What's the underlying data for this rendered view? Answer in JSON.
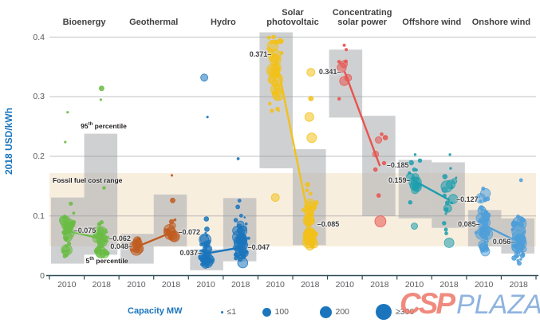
{
  "colors": {
    "accent_blue": "#1B75BC",
    "text_dark": "#414042",
    "text_mid": "#58595b",
    "grid": "#8d8f92",
    "box_fill": "rgba(175,177,180,0.6)",
    "band_fill": "#F8EEDE",
    "axis_line": "#2E4A57"
  },
  "percentiles": {
    "p95_num": "95",
    "p95_sup": "th",
    "p95_word": " percentile",
    "p5_num": "5",
    "p5_sup": "th",
    "p5_word": " percentile"
  },
  "legend": {
    "title": "Capacity MW",
    "items": [
      {
        "label": "≤1",
        "r": 1.5
      },
      {
        "label": "100",
        "r": 5.5
      },
      {
        "label": "200",
        "r": 7.5
      },
      {
        "label": "≥300",
        "r": 10
      }
    ]
  },
  "watermark": {
    "csp": "CSP",
    "plaza": "PLAZA"
  },
  "chart_data": {
    "type": "scatter",
    "title": "",
    "ylabel": "2018 USD/kWh",
    "ylim": [
      0,
      0.42
    ],
    "yticks": [
      0.4,
      0.3,
      0.2,
      0.1,
      0
    ],
    "ytick_labels": [
      "0.4",
      "0.3",
      "0.2",
      "0.1",
      "0"
    ],
    "x_years": [
      "2010",
      "2018"
    ],
    "grid": true,
    "fossil_band": {
      "label": "Fossil fuel cost range",
      "min": 0.049,
      "max": 0.172
    },
    "groups": [
      {
        "label": "Bioenergy",
        "color": "#6ABC45",
        "years": [
          {
            "year": "2010",
            "avg": 0.075,
            "avg_text": "0.075",
            "side": "right",
            "box": [
              0.02,
              0.131
            ],
            "swarm": {
              "seed": 11,
              "n": 36,
              "min": 0.032,
              "max": 0.148,
              "center": 0.072,
              "maxr": 5.5
            },
            "outliers": [
              [
                0.224,
                1.2,
                -2
              ],
              [
                0.274,
                1.2,
                1
              ]
            ]
          },
          {
            "year": "2018",
            "avg": 0.062,
            "avg_text": "0.062",
            "side": "right",
            "box": [
              0.035,
              0.238
            ],
            "swarm": {
              "seed": 12,
              "n": 34,
              "min": 0.036,
              "max": 0.15,
              "center": 0.058,
              "maxr": 5.5
            },
            "outliers": [
              [
                0.314,
                3,
                0
              ],
              [
                0.295,
                1.2,
                -1
              ],
              [
                0.147,
                1.8,
                3
              ]
            ]
          }
        ]
      },
      {
        "label": "Geothermal",
        "color": "#C05C21",
        "years": [
          {
            "year": "2010",
            "avg": 0.048,
            "avg_text": "0.048",
            "side": "left",
            "box": [
              0.02,
              0.07
            ],
            "swarm": {
              "seed": 13,
              "n": 12,
              "min": 0.042,
              "max": 0.09,
              "center": 0.051,
              "maxr": 6
            },
            "outliers": []
          },
          {
            "year": "2018",
            "avg": 0.072,
            "avg_text": "0.072",
            "side": "right",
            "box": [
              0.049,
              0.136
            ],
            "swarm": {
              "seed": 14,
              "n": 14,
              "min": 0.054,
              "max": 0.102,
              "center": 0.072,
              "maxr": 6
            },
            "outliers": [
              [
                0.126,
                3,
                2
              ],
              [
                0.168,
                1.2,
                1
              ]
            ]
          }
        ]
      },
      {
        "label": "Hydro",
        "color": "#1B75BC",
        "years": [
          {
            "year": "2010",
            "avg": 0.037,
            "avg_text": "0.037",
            "side": "left",
            "box": [
              0.009,
              0.044
            ],
            "swarm": {
              "seed": 15,
              "n": 40,
              "min": 0.018,
              "max": 0.132,
              "center": 0.04,
              "maxr": 6
            },
            "outliers": [
              [
                0.332,
                4.5,
                -2
              ],
              [
                0.266,
                1.2,
                2
              ]
            ]
          },
          {
            "year": "2018",
            "avg": 0.047,
            "avg_text": "0.047",
            "side": "right",
            "box": [
              0.024,
              0.13
            ],
            "swarm": {
              "seed": 16,
              "n": 46,
              "min": 0.02,
              "max": 0.158,
              "center": 0.058,
              "maxr": 7
            },
            "outliers": [
              [
                0.196,
                1.5,
                -3
              ]
            ]
          }
        ]
      },
      {
        "label": "Solar photovoltaic",
        "color": "#F2C11A",
        "years": [
          {
            "year": "2010",
            "avg": 0.371,
            "avg_text": "0.371",
            "side": "left",
            "box": [
              0.18,
              0.408
            ],
            "swarm": {
              "seed": 17,
              "n": 42,
              "min": 0.188,
              "max": 0.402,
              "center": 0.35,
              "maxr": 7
            },
            "outliers": [
              [
                0.131,
                5,
                0
              ]
            ]
          },
          {
            "year": "2018",
            "avg": 0.085,
            "avg_text": "0.085",
            "side": "right",
            "box": [
              0.051,
              0.212
            ],
            "swarm": {
              "seed": 18,
              "n": 46,
              "min": 0.048,
              "max": 0.21,
              "center": 0.085,
              "maxr": 6.5
            },
            "outliers": [
              [
                0.341,
                5,
                1
              ],
              [
                0.297,
                3,
                1
              ],
              [
                0.266,
                5.5,
                -1
              ],
              [
                0.231,
                6,
                2
              ]
            ]
          }
        ]
      },
      {
        "label": "Concentrating solar power",
        "color": "#E8544F",
        "years": [
          {
            "year": "2010",
            "avg": 0.341,
            "avg_text": "0.341",
            "side": "left",
            "box": [
              0.265,
              0.379
            ],
            "swarm": {
              "seed": 19,
              "n": 9,
              "min": 0.262,
              "max": 0.388,
              "center": 0.34,
              "maxr": 4.5
            },
            "outliers": []
          },
          {
            "year": "2018",
            "avg": 0.185,
            "avg_text": "0.185",
            "side": "right",
            "box": [
              0.1,
              0.268
            ],
            "swarm": {
              "seed": 20,
              "n": 7,
              "min": 0.115,
              "max": 0.268,
              "center": 0.19,
              "maxr": 5.5
            },
            "outliers": [
              [
                0.091,
                7,
                1
              ]
            ]
          }
        ]
      },
      {
        "label": "Offshore wind",
        "color": "#1E9EAD",
        "years": [
          {
            "year": "2010",
            "avg": 0.159,
            "avg_text": "0.159",
            "side": "left",
            "box": [
              0.096,
              0.194
            ],
            "swarm": {
              "seed": 21,
              "n": 15,
              "min": 0.098,
              "max": 0.196,
              "center": 0.156,
              "maxr": 6
            },
            "outliers": [
              [
                0.203,
                1.3,
                1
              ],
              [
                0.083,
                4,
                0
              ]
            ]
          },
          {
            "year": "2018",
            "avg": 0.127,
            "avg_text": "0.127",
            "side": "right",
            "box": [
              0.08,
              0.19
            ],
            "swarm": {
              "seed": 22,
              "n": 18,
              "min": 0.06,
              "max": 0.196,
              "center": 0.125,
              "maxr": 6.5
            },
            "outliers": [
              [
                0.203,
                1.3,
                1
              ],
              [
                0.055,
                6,
                0
              ]
            ]
          }
        ]
      },
      {
        "label": "Onshore wind",
        "color": "#4E9FD9",
        "years": [
          {
            "year": "2010",
            "avg": 0.085,
            "avg_text": "0.085",
            "side": "left",
            "box": [
              0.049,
              0.11
            ],
            "swarm": {
              "seed": 23,
              "n": 42,
              "min": 0.04,
              "max": 0.188,
              "center": 0.078,
              "maxr": 6.5
            },
            "outliers": []
          },
          {
            "year": "2018",
            "avg": 0.056,
            "avg_text": "0.056",
            "side": "left",
            "box": [
              0.037,
              0.096
            ],
            "swarm": {
              "seed": 24,
              "n": 42,
              "min": 0.018,
              "max": 0.132,
              "center": 0.058,
              "maxr": 7.5
            },
            "outliers": [
              [
                0.16,
                2,
                3
              ]
            ]
          }
        ]
      }
    ]
  }
}
